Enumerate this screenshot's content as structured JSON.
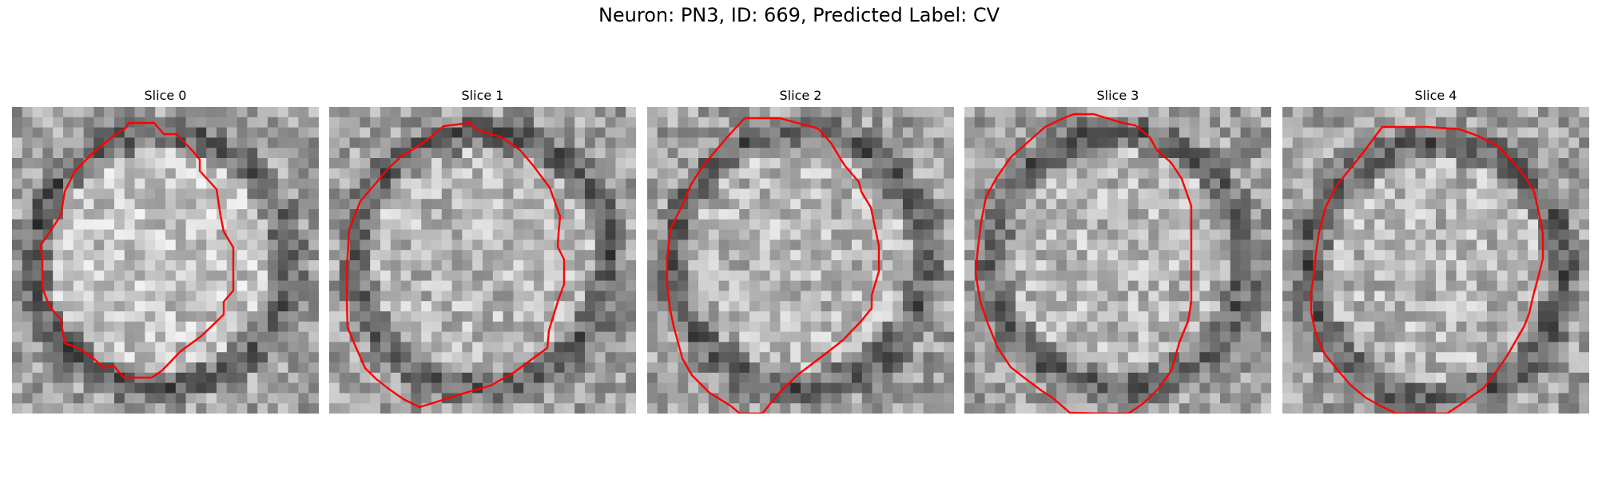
{
  "figure": {
    "title": "Neuron: PN3, ID: 669, Predicted Label: CV"
  },
  "colors": {
    "contour": "#ff0000",
    "image_colormap": "grayscale"
  },
  "slices": [
    {
      "title": "Slice 0"
    },
    {
      "title": "Slice 1"
    },
    {
      "title": "Slice 2"
    },
    {
      "title": "Slice 3"
    },
    {
      "title": "Slice 4"
    }
  ]
}
